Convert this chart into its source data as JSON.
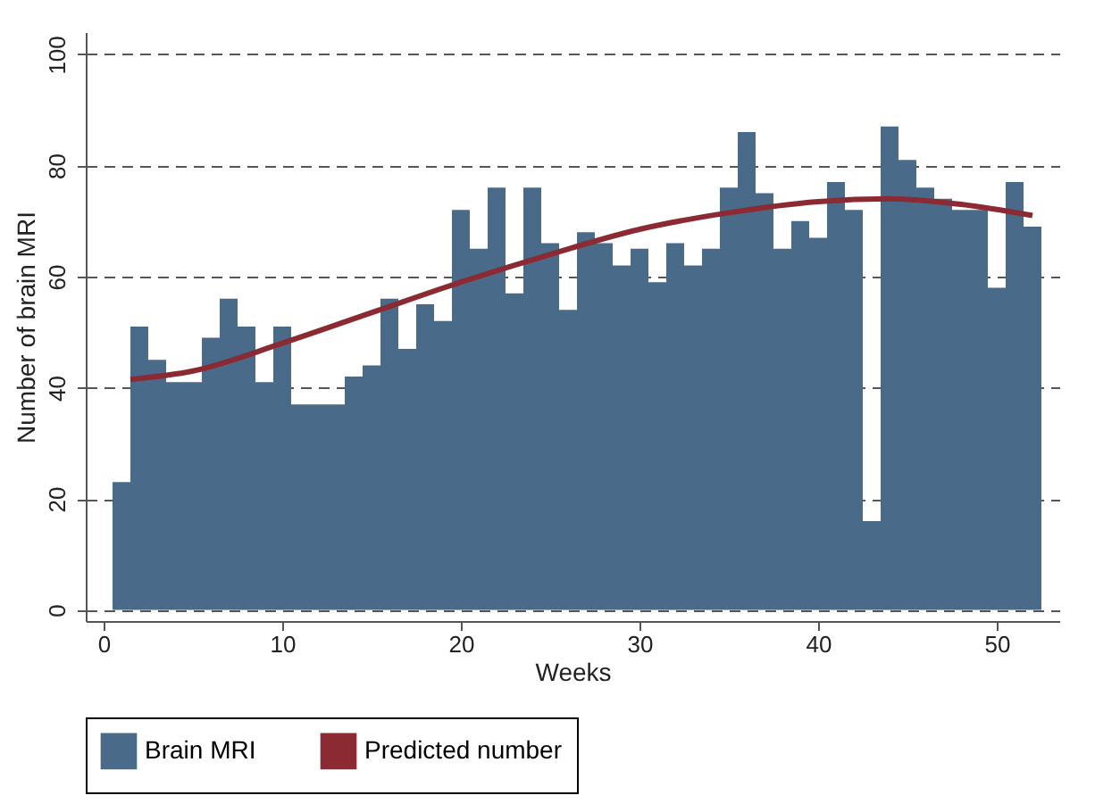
{
  "chart_data": {
    "type": "bar",
    "xlabel": "Weeks",
    "ylabel": "Number of brain MRI",
    "x": [
      1,
      2,
      3,
      4,
      5,
      6,
      7,
      8,
      9,
      10,
      11,
      12,
      13,
      14,
      15,
      16,
      17,
      18,
      19,
      20,
      21,
      22,
      23,
      24,
      25,
      26,
      27,
      28,
      29,
      30,
      31,
      32,
      33,
      34,
      35,
      36,
      37,
      38,
      39,
      40,
      41,
      42,
      43,
      44,
      45,
      46,
      47,
      48,
      49,
      50,
      51,
      52
    ],
    "series": [
      {
        "name": "Brain MRI",
        "color": "#4a6a8a",
        "values": [
          23,
          51,
          45,
          41,
          41,
          49,
          56,
          51,
          41,
          51,
          37,
          37,
          37,
          42,
          44,
          56,
          47,
          55,
          52,
          72,
          65,
          76,
          57,
          76,
          66,
          54,
          68,
          66,
          62,
          65,
          59,
          66,
          62,
          65,
          76,
          86,
          75,
          65,
          70,
          67,
          77,
          72,
          16,
          87,
          81,
          76,
          74,
          72,
          72,
          58,
          77,
          69
        ]
      },
      {
        "name": "Predicted number",
        "type": "line",
        "color": "#8b2a32",
        "x": [
          1.5,
          5,
          10,
          15,
          20,
          25,
          30,
          35,
          40,
          44,
          48,
          52
        ],
        "values": [
          41.5,
          43,
          48,
          53.5,
          59,
          64,
          68.5,
          71.5,
          73.5,
          74,
          73,
          71
        ]
      }
    ],
    "xlim": [
      -1,
      53.5
    ],
    "ylim": [
      -2,
      104
    ],
    "xticks": [
      0,
      10,
      20,
      30,
      40,
      50
    ],
    "yticks": [
      0,
      20,
      40,
      60,
      80,
      100
    ],
    "grid": "y",
    "legend": "bottom"
  }
}
